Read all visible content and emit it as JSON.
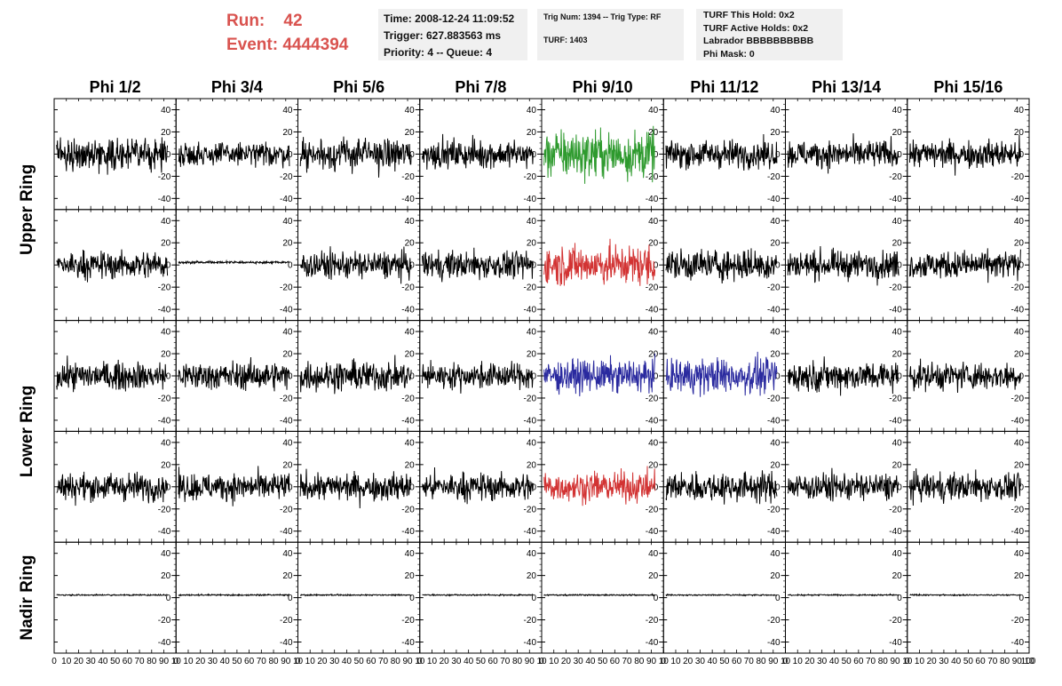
{
  "header": {
    "run_label": "Run:",
    "run_value": "42",
    "event_label": "Event:",
    "event_value": "4444394",
    "colors": {
      "run_text": "#d9534f",
      "info_bg": "#f0f0f0"
    },
    "time_box": [
      "Time: 2008-12-24 11:09:52",
      "Trigger: 627.883563 ms",
      "Priority: 4 -- Queue: 4"
    ],
    "trig_box": [
      "Trig Num: 1394 -- Trig Type: RF",
      "TURF: 1403"
    ],
    "turf_box": [
      "TURF This Hold: 0x2",
      "TURF Active Holds: 0x2",
      "Labrador BBBBBBBBBB",
      "Phi Mask: 0"
    ]
  },
  "chart_data": {
    "type": "line",
    "columns": [
      "Phi 1/2",
      "Phi 3/4",
      "Phi 5/6",
      "Phi 7/8",
      "Phi 9/10",
      "Phi 11/12",
      "Phi 13/14",
      "Phi 15/16"
    ],
    "ring_labels": [
      "Upper Ring",
      "Lower Ring",
      "Nadir Ring"
    ],
    "ylim": [
      -50,
      50
    ],
    "xlim": [
      0,
      100
    ],
    "y_ticks": [
      "40",
      "20",
      "0",
      "-20",
      "-40"
    ],
    "x_tick_labels_per_panel": [
      "0",
      "10",
      "20",
      "30",
      "40",
      "50",
      "60",
      "70",
      "80",
      "90",
      "10"
    ],
    "x_tick_label_last": "100",
    "waveform_samples": 260,
    "waveform_x_range": [
      2,
      93
    ],
    "trace_colors": {
      "default": "#000000",
      "green": "#2e9a2e",
      "red": "#d23333",
      "blue": "#2a2a9f"
    },
    "panel_rows": [
      {
        "amplitudes": [
          15,
          12,
          16,
          14,
          24,
          14,
          14,
          14
        ],
        "colors": [
          "default",
          "default",
          "default",
          "default",
          "green",
          "default",
          "default",
          "default"
        ]
      },
      {
        "amplitudes": [
          14,
          2,
          14,
          14,
          20,
          16,
          14,
          14
        ],
        "colors": [
          "default",
          "default",
          "default",
          "default",
          "red",
          "default",
          "default",
          "default"
        ]
      },
      {
        "amplitudes": [
          14,
          14,
          15,
          13,
          16,
          18,
          15,
          14
        ],
        "colors": [
          "default",
          "default",
          "default",
          "default",
          "blue",
          "blue",
          "default",
          "default"
        ]
      },
      {
        "amplitudes": [
          14,
          14,
          14,
          14,
          15,
          15,
          14,
          14
        ],
        "colors": [
          "default",
          "default",
          "default",
          "default",
          "red",
          "default",
          "default",
          "default"
        ]
      },
      {
        "amplitudes": [
          1.2,
          1.2,
          1.2,
          1.2,
          1.2,
          1.2,
          1.2,
          1.2
        ],
        "colors": [
          "default",
          "default",
          "default",
          "default",
          "default",
          "default",
          "default",
          "default"
        ]
      }
    ]
  }
}
